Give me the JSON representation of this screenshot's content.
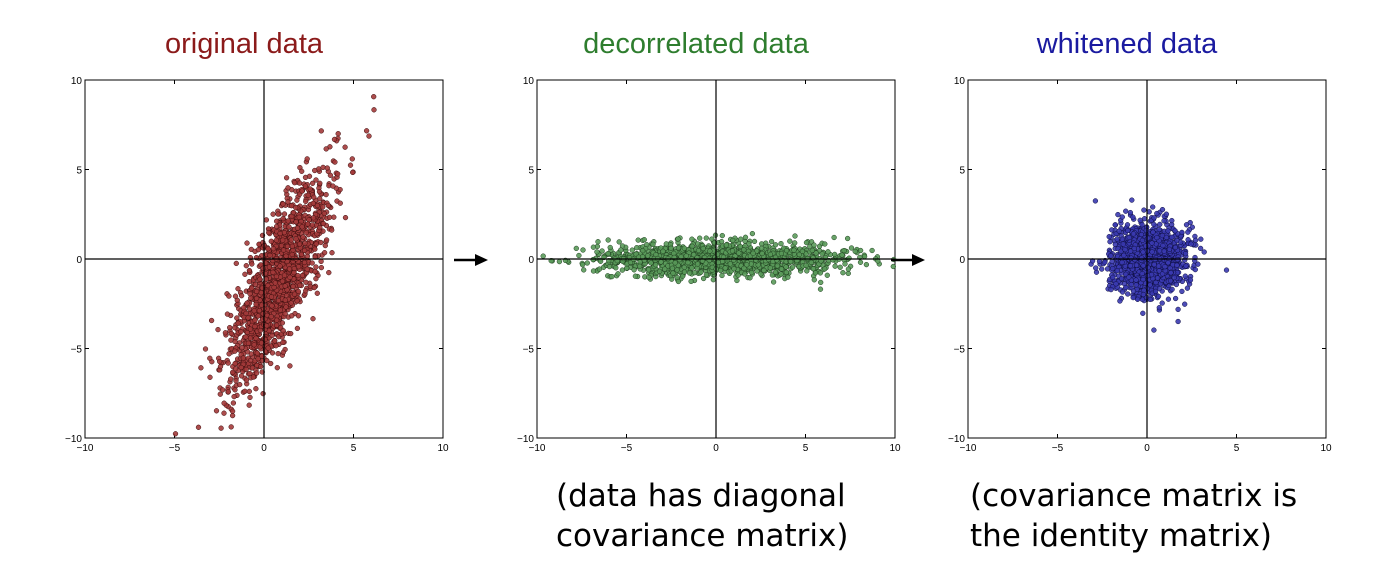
{
  "chart_data": [
    {
      "type": "scatter",
      "title": "original data",
      "title_color": "#8b1a1a",
      "point_fill": "#a33a3a",
      "point_stroke": "#3a0d0d",
      "xlim": [
        -10,
        10
      ],
      "ylim": [
        -10,
        10
      ],
      "x_ticks": [
        "−10",
        "−5",
        "0",
        "5",
        "10"
      ],
      "y_ticks": [
        "10",
        "5",
        "0",
        "−5",
        "−10"
      ],
      "grid": false,
      "distribution": {
        "mean": [
          0.8,
          -1.2
        ],
        "std_major": 3.2,
        "std_minor": 0.8,
        "angle_deg": 68,
        "n": 1500
      }
    },
    {
      "type": "scatter",
      "title": "decorrelated data",
      "title_color": "#2e7d2e",
      "point_fill": "#5a9a5a",
      "point_stroke": "#1e3e1e",
      "xlim": [
        -10,
        10
      ],
      "ylim": [
        -10,
        10
      ],
      "x_ticks": [
        "−10",
        "−5",
        "0",
        "5",
        "10"
      ],
      "y_ticks": [
        "10",
        "5",
        "0",
        "−5",
        "−10"
      ],
      "grid": false,
      "distribution": {
        "mean": [
          0,
          0
        ],
        "std_x": 3.3,
        "std_y": 0.45,
        "n": 1500
      }
    },
    {
      "type": "scatter",
      "title": "whitened data",
      "title_color": "#1a1aa0",
      "point_fill": "#3a3ab0",
      "point_stroke": "#0d0d40",
      "xlim": [
        -10,
        10
      ],
      "ylim": [
        -10,
        10
      ],
      "x_ticks": [
        "−10",
        "−5",
        "0",
        "5",
        "10"
      ],
      "y_ticks": [
        "10",
        "5",
        "0",
        "−5",
        "−10"
      ],
      "grid": false,
      "distribution": {
        "mean": [
          0,
          0
        ],
        "std_x": 1.0,
        "std_y": 1.0,
        "n": 1500
      }
    }
  ],
  "captions": {
    "decorrelated": "(data has diagonal\ncovariance matrix)",
    "whitened": "(covariance matrix is\nthe identity matrix)"
  },
  "icons": {
    "arrow": "right-arrow-icon"
  }
}
